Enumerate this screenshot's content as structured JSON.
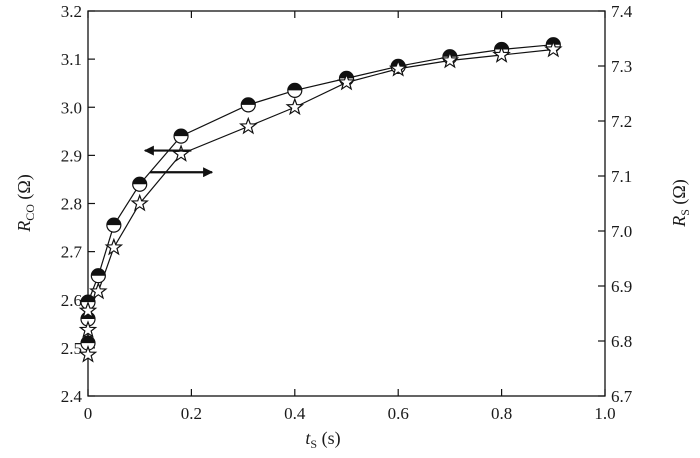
{
  "chart_data": {
    "type": "scatter",
    "x_axis": {
      "label_main": "t",
      "label_sub": "S",
      "label_unit": " (s)",
      "range": [
        0.0,
        1.0
      ],
      "ticks": [
        "0",
        "0.2",
        "0.4",
        "0.6",
        "0.8",
        "1.0"
      ],
      "tick_values": [
        0,
        0.2,
        0.4,
        0.6,
        0.8,
        1.0
      ]
    },
    "y_left": {
      "label_main": "R",
      "label_sub": "CO",
      "label_unit": " (Ω)",
      "range": [
        2.4,
        3.2
      ],
      "ticks": [
        "2.4",
        "2.5",
        "2.6",
        "2.7",
        "2.8",
        "2.9",
        "3.0",
        "3.1",
        "3.2"
      ],
      "tick_values": [
        2.4,
        2.5,
        2.6,
        2.7,
        2.8,
        2.9,
        3.0,
        3.1,
        3.2
      ]
    },
    "y_right": {
      "label_main": "R",
      "label_sub": "S",
      "label_unit": " (Ω)",
      "range": [
        6.7,
        7.4
      ],
      "ticks": [
        "6.7",
        "6.8",
        "6.9",
        "7.0",
        "7.1",
        "7.2",
        "7.3",
        "7.4"
      ],
      "tick_values": [
        6.7,
        6.8,
        6.9,
        7.0,
        7.1,
        7.2,
        7.3,
        7.4
      ]
    },
    "series": [
      {
        "marker": "half-filled-circle",
        "axis": "left",
        "x": [
          0.0,
          0.0,
          0.0,
          0.02,
          0.05,
          0.1,
          0.18,
          0.31,
          0.4,
          0.5,
          0.6,
          0.7,
          0.8,
          0.9
        ],
        "y": [
          2.51,
          2.56,
          2.595,
          2.65,
          2.755,
          2.84,
          2.94,
          3.005,
          3.035,
          3.06,
          3.085,
          3.105,
          3.12,
          3.13
        ]
      },
      {
        "marker": "star",
        "axis": "right",
        "x": [
          0.0,
          0.0,
          0.0,
          0.02,
          0.05,
          0.1,
          0.18,
          0.31,
          0.4,
          0.5,
          0.6,
          0.7,
          0.8,
          0.9
        ],
        "y": [
          6.775,
          6.82,
          6.855,
          6.89,
          6.97,
          7.05,
          7.14,
          7.19,
          7.225,
          7.27,
          7.295,
          7.31,
          7.32,
          7.33
        ]
      }
    ],
    "annotations": [
      {
        "type": "arrow",
        "direction": "left",
        "points_to": "left-axis",
        "x": [
          0.2,
          0.11
        ],
        "y_axis": "left",
        "y": 2.91
      },
      {
        "type": "arrow",
        "direction": "right",
        "points_to": "right-axis",
        "x": [
          0.12,
          0.24
        ],
        "y_axis": "left",
        "y": 2.865
      }
    ],
    "grid": false,
    "legend": "none"
  }
}
